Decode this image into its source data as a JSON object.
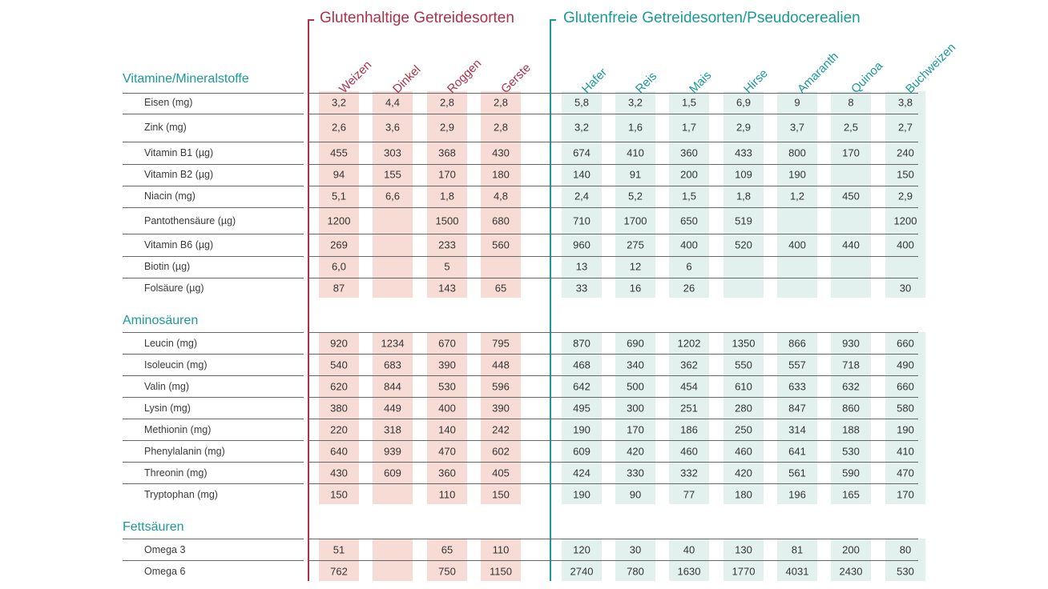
{
  "groups": {
    "gluten": "Glutenhaltige Getreidesorten",
    "glutenfree": "Glutenfreie Getreidesorten/Pseudocerealien"
  },
  "columns": [
    "Weizen",
    "Dinkel",
    "Roggen",
    "Gerste",
    "Hafer",
    "Reis",
    "Mais",
    "Hirse",
    "Amaranth",
    "Quinoa",
    "Buchweizen"
  ],
  "colors": {
    "gluten": "#b0304a",
    "glutenfree": "#1a9a98",
    "gluten_fill": "#f7dcd6",
    "glutenfree_fill": "#e3f1ee"
  },
  "sections": [
    {
      "title": "Vitamine/Mineralstoffe",
      "rows": [
        {
          "label": "Eisen (mg)",
          "values": [
            "3,2",
            "4,4",
            "2,8",
            "2,8",
            "5,8",
            "3,2",
            "1,5",
            "6,9",
            "9",
            "8",
            "3,8"
          ]
        },
        {
          "label": "Zink (mg)",
          "values": [
            "2,6",
            "3,6",
            "2,9",
            "2,8",
            "3,2",
            "1,6",
            "1,7",
            "2,9",
            "3,7",
            "2,5",
            "2,7"
          ]
        },
        {
          "label": "Vitamin B1 (µg)",
          "values": [
            "455",
            "303",
            "368",
            "430",
            "674",
            "410",
            "360",
            "433",
            "800",
            "170",
            "240"
          ]
        },
        {
          "label": "Vitamin B2 (µg)",
          "values": [
            "94",
            "155",
            "170",
            "180",
            "140",
            "91",
            "200",
            "109",
            "190",
            "",
            "150"
          ]
        },
        {
          "label": "Niacin (mg)",
          "values": [
            "5,1",
            "6,6",
            "1,8",
            "4,8",
            "2,4",
            "5,2",
            "1,5",
            "1,8",
            "1,2",
            "450",
            "2,9"
          ]
        },
        {
          "label": "Pantothensäure (µg)",
          "values": [
            "1200",
            "",
            "1500",
            "680",
            "710",
            "1700",
            "650",
            "519",
            "",
            "",
            "1200"
          ]
        },
        {
          "label": "Vitamin B6 (µg)",
          "values": [
            "269",
            "",
            "233",
            "560",
            "960",
            "275",
            "400",
            "520",
            "400",
            "440",
            "400"
          ]
        },
        {
          "label": "Biotin (µg)",
          "values": [
            "6,0",
            "",
            "5",
            "",
            "13",
            "12",
            "6",
            "",
            "",
            "",
            ""
          ]
        },
        {
          "label": "Folsäure (µg)",
          "values": [
            "87",
            "",
            "143",
            "65",
            "33",
            "16",
            "26",
            "",
            "",
            "",
            "30"
          ]
        }
      ]
    },
    {
      "title": "Aminosäuren",
      "rows": [
        {
          "label": "Leucin (mg)",
          "values": [
            "920",
            "1234",
            "670",
            "795",
            "870",
            "690",
            "1202",
            "1350",
            "866",
            "930",
            "660"
          ]
        },
        {
          "label": "Isoleucin (mg)",
          "values": [
            "540",
            "683",
            "390",
            "448",
            "468",
            "340",
            "362",
            "550",
            "557",
            "718",
            "490"
          ]
        },
        {
          "label": "Valin (mg)",
          "values": [
            "620",
            "844",
            "530",
            "596",
            "642",
            "500",
            "454",
            "610",
            "633",
            "632",
            "660"
          ]
        },
        {
          "label": "Lysin (mg)",
          "values": [
            "380",
            "449",
            "400",
            "390",
            "495",
            "300",
            "251",
            "280",
            "847",
            "860",
            "580"
          ]
        },
        {
          "label": "Methionin (mg)",
          "values": [
            "220",
            "318",
            "140",
            "242",
            "190",
            "170",
            "186",
            "250",
            "314",
            "188",
            "190"
          ]
        },
        {
          "label": "Phenylalanin (mg)",
          "values": [
            "640",
            "939",
            "470",
            "602",
            "609",
            "420",
            "460",
            "460",
            "641",
            "530",
            "410"
          ]
        },
        {
          "label": "Threonin (mg)",
          "values": [
            "430",
            "609",
            "360",
            "405",
            "424",
            "330",
            "332",
            "420",
            "561",
            "590",
            "470"
          ]
        },
        {
          "label": "Tryptophan (mg)",
          "values": [
            "150",
            "",
            "110",
            "150",
            "190",
            "90",
            "77",
            "180",
            "196",
            "165",
            "170"
          ]
        }
      ]
    },
    {
      "title": "Fettsäuren",
      "rows": [
        {
          "label": "Omega 3",
          "values": [
            "51",
            "",
            "65",
            "110",
            "120",
            "30",
            "40",
            "130",
            "81",
            "200",
            "80"
          ]
        },
        {
          "label": "Omega 6",
          "values": [
            "762",
            "",
            "750",
            "1150",
            "2740",
            "780",
            "1630",
            "1770",
            "4031",
            "2430",
            "530"
          ]
        }
      ]
    }
  ]
}
